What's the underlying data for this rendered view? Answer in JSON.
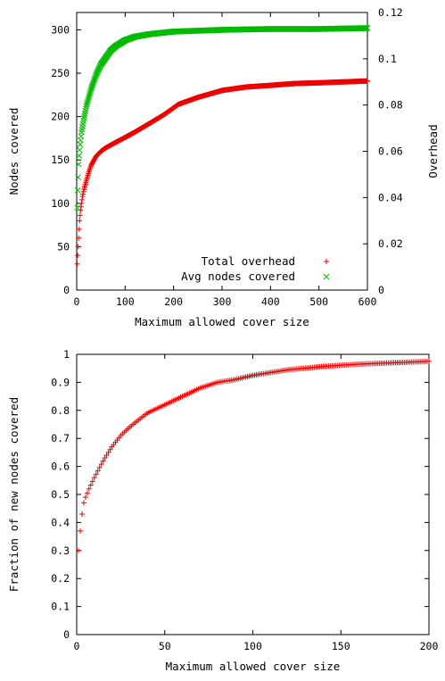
{
  "chart_data": [
    {
      "type": "scatter",
      "title": "",
      "xlabel": "Maximum allowed cover size",
      "ylabel": "Nodes covered",
      "ylabel_right": "Overhead",
      "xlim": [
        0,
        600
      ],
      "ylim": [
        0,
        320
      ],
      "ylim_right": [
        0,
        0.12
      ],
      "xticks": [
        "0",
        "100",
        "200",
        "300",
        "400",
        "500",
        "600"
      ],
      "yticks": [
        "0",
        "50",
        "100",
        "150",
        "200",
        "250",
        "300"
      ],
      "yticks_right": [
        "0",
        "0.02",
        "0.04",
        "0.06",
        "0.08",
        "0.1",
        "0.12"
      ],
      "grid": false,
      "legend_position": "bottom-right",
      "series": [
        {
          "name": "Total overhead",
          "axis": "right",
          "color": "#ee0000",
          "marker": "+",
          "points": [
            [
              1,
              0.0113
            ],
            [
              2,
              0.015
            ],
            [
              3,
              0.0188
            ],
            [
              4,
              0.0225
            ],
            [
              5,
              0.0263
            ],
            [
              6,
              0.03
            ],
            [
              8,
              0.0345
            ],
            [
              10,
              0.0375
            ],
            [
              12,
              0.0405
            ],
            [
              15,
              0.0435
            ],
            [
              20,
              0.0473
            ],
            [
              25,
              0.051
            ],
            [
              30,
              0.054
            ],
            [
              40,
              0.0578
            ],
            [
              50,
              0.06
            ],
            [
              60,
              0.0615
            ],
            [
              80,
              0.0638
            ],
            [
              100,
              0.066
            ],
            [
              120,
              0.0683
            ],
            [
              150,
              0.072
            ],
            [
              180,
              0.0758
            ],
            [
              210,
              0.0803
            ],
            [
              250,
              0.0833
            ],
            [
              300,
              0.0863
            ],
            [
              350,
              0.0878
            ],
            [
              400,
              0.0885
            ],
            [
              450,
              0.0893
            ],
            [
              500,
              0.0896
            ],
            [
              550,
              0.09
            ],
            [
              600,
              0.0904
            ]
          ]
        },
        {
          "name": "Avg nodes covered",
          "axis": "left",
          "color": "#00bb00",
          "marker": "x",
          "points": [
            [
              1,
              95
            ],
            [
              2,
              115
            ],
            [
              3,
              130
            ],
            [
              4,
              145
            ],
            [
              5,
              155
            ],
            [
              7,
              168
            ],
            [
              10,
              182
            ],
            [
              15,
              198
            ],
            [
              20,
              212
            ],
            [
              25,
              222
            ],
            [
              30,
              232
            ],
            [
              40,
              248
            ],
            [
              50,
              260
            ],
            [
              60,
              268
            ],
            [
              70,
              276
            ],
            [
              80,
              281
            ],
            [
              100,
              288
            ],
            [
              120,
              292
            ],
            [
              150,
              295
            ],
            [
              200,
              298
            ],
            [
              250,
              299
            ],
            [
              300,
              300
            ],
            [
              400,
              301
            ],
            [
              500,
              301
            ],
            [
              600,
              302
            ]
          ]
        }
      ]
    },
    {
      "type": "scatter",
      "title": "",
      "xlabel": "Maximum allowed cover size",
      "ylabel": "Fraction of new nodes covered",
      "xlim": [
        0,
        200
      ],
      "ylim": [
        0,
        1
      ],
      "xticks": [
        "0",
        "50",
        "100",
        "150",
        "200"
      ],
      "yticks": [
        "0",
        "0.1",
        "0.2",
        "0.3",
        "0.4",
        "0.5",
        "0.6",
        "0.7",
        "0.8",
        "0.9",
        "1"
      ],
      "grid": false,
      "legend_position": "none",
      "series": [
        {
          "color": "#ee0000",
          "marker": "+",
          "points": [
            [
              1,
              0.3
            ],
            [
              2,
              0.37
            ],
            [
              3,
              0.43
            ],
            [
              4,
              0.47
            ],
            [
              5,
              0.49
            ],
            [
              7,
              0.52
            ],
            [
              10,
              0.56
            ],
            [
              15,
              0.62
            ],
            [
              20,
              0.67
            ],
            [
              25,
              0.71
            ],
            [
              30,
              0.74
            ],
            [
              40,
              0.79
            ],
            [
              50,
              0.82
            ],
            [
              60,
              0.85
            ],
            [
              70,
              0.88
            ],
            [
              80,
              0.9
            ],
            [
              90,
              0.91
            ],
            [
              100,
              0.925
            ],
            [
              120,
              0.945
            ],
            [
              140,
              0.957
            ],
            [
              160,
              0.965
            ],
            [
              180,
              0.97
            ],
            [
              200,
              0.975
            ]
          ]
        }
      ]
    }
  ]
}
